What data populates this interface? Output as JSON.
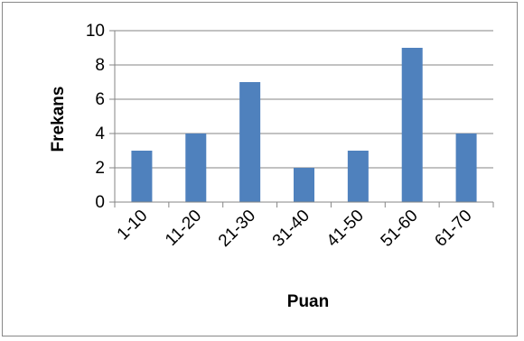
{
  "chart_data": {
    "type": "bar",
    "title": "",
    "xlabel": "Puan",
    "ylabel": "Frekans",
    "categories": [
      "1-10",
      "11-20",
      "21-30",
      "31-40",
      "41-50",
      "51-60",
      "61-70"
    ],
    "series": [
      {
        "values": [
          3,
          4,
          7,
          2,
          3,
          9,
          4
        ]
      }
    ],
    "ylim": [
      0,
      10
    ],
    "yticks": [
      "0",
      "2",
      "4",
      "6",
      "8",
      "10"
    ],
    "grid": "horizontal",
    "legend": "none",
    "bar_color": "#4f81bd",
    "grid_color": "#868686"
  }
}
